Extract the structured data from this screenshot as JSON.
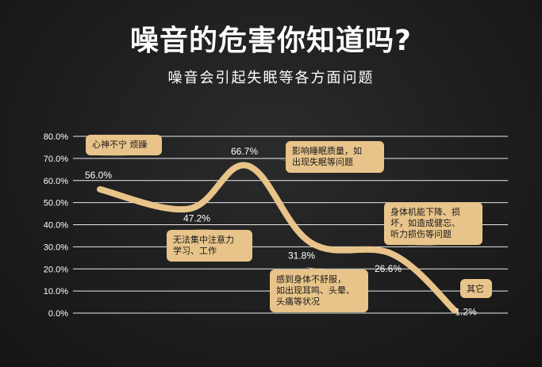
{
  "title": "噪音的危害你知道吗?",
  "subtitle": "噪音会引起失眠等各方面问题",
  "colors": {
    "curve": "#e8c48a",
    "box": "#e8c48a",
    "grid": "#ffffff",
    "background": "#1d1d1d"
  },
  "chart_data": {
    "type": "line",
    "ylim": [
      0,
      80
    ],
    "yticks": [
      "0.0%",
      "10.0%",
      "20.0%",
      "30.0%",
      "40.0%",
      "50.0%",
      "60.0%",
      "70.0%",
      "80.0%"
    ],
    "grid": true,
    "x": [
      1,
      2,
      3,
      4,
      5,
      6
    ],
    "values": [
      56.0,
      47.2,
      66.7,
      31.8,
      26.6,
      1.2
    ],
    "value_labels": [
      "56.0%",
      "47.2%",
      "66.7%",
      "31.8%",
      "26.6%",
      "1.2%"
    ],
    "annotations": [
      [
        "心神不宁 烦躁"
      ],
      [
        "无法集中注意力",
        "学习、工作"
      ],
      [
        "影响睡眠质量，如",
        "出现失眠等问题"
      ],
      [
        "感到身体不舒服，",
        "如出现耳鸣、头晕、",
        "头痛等状况"
      ],
      [
        "身体机能下降、损",
        "坏，如造成健忘、",
        "听力损伤等问题"
      ],
      [
        "其它"
      ]
    ]
  }
}
